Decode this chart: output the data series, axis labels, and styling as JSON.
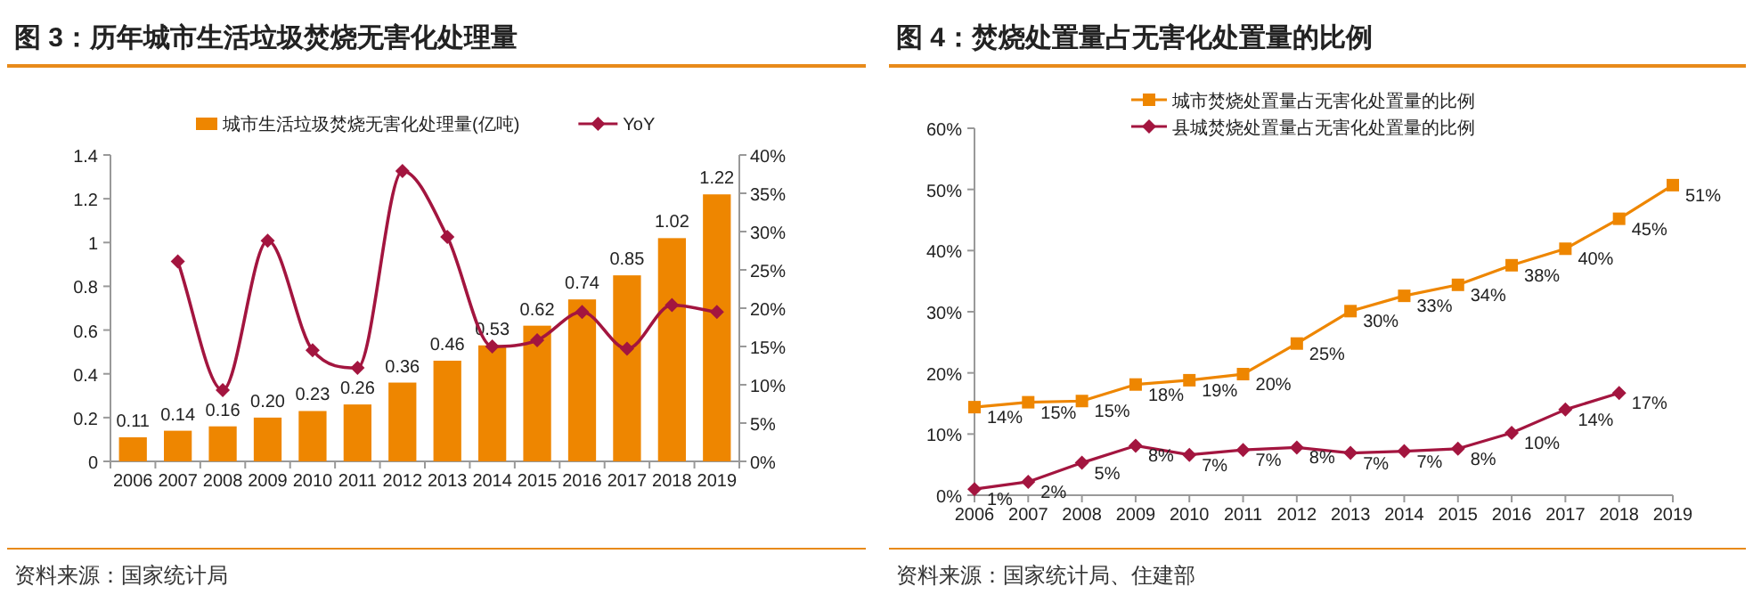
{
  "chart_data": [
    {
      "type": "bar",
      "title": "图 3：历年城市生活垃圾焚烧无害化处理量",
      "categories": [
        "2006",
        "2007",
        "2008",
        "2009",
        "2010",
        "2011",
        "2012",
        "2013",
        "2014",
        "2015",
        "2016",
        "2017",
        "2018",
        "2019"
      ],
      "series": [
        {
          "name": "城市生活垃圾焚烧无害化处理量(亿吨)",
          "type": "bar",
          "color": "#ee8600",
          "values": [
            0.11,
            0.14,
            0.16,
            0.2,
            0.23,
            0.26,
            0.36,
            0.46,
            0.53,
            0.62,
            0.74,
            0.85,
            1.02,
            1.22
          ],
          "value_labels": [
            "0.11",
            "0.14",
            "0.16",
            "0.20",
            "0.23",
            "0.26",
            "0.36",
            "0.46",
            "0.53",
            "0.62",
            "0.74",
            "0.85",
            "1.02",
            "1.22"
          ]
        },
        {
          "name": "YoY",
          "type": "line",
          "axis": "y2",
          "color": "#a3153f",
          "marker": "diamond",
          "values": [
            null,
            26.1,
            9.3,
            28.8,
            14.5,
            12.2,
            37.9,
            29.3,
            15.0,
            15.8,
            19.5,
            14.7,
            20.4,
            19.5
          ]
        }
      ],
      "ylim": [
        0,
        1.4
      ],
      "yticks": [
        0,
        0.2,
        0.4,
        0.6,
        0.8,
        1,
        1.2,
        1.4
      ],
      "y2lim": [
        0,
        40
      ],
      "y2ticks": [
        {
          "value": 0,
          "label": "0%"
        },
        {
          "value": 5,
          "label": "5%"
        },
        {
          "value": 10,
          "label": "10%"
        },
        {
          "value": 15,
          "label": "15%"
        },
        {
          "value": 20,
          "label": "20%"
        },
        {
          "value": 25,
          "label": "25%"
        },
        {
          "value": 30,
          "label": "30%"
        },
        {
          "value": 35,
          "label": "35%"
        },
        {
          "value": 40,
          "label": "40%"
        }
      ],
      "legend": "top",
      "annotations": [
        "资料来源：国家统计局"
      ]
    },
    {
      "type": "line",
      "title": "图 4：焚烧处置量占无害化处置量的比例",
      "categories": [
        "2006",
        "2007",
        "2008",
        "2009",
        "2010",
        "2011",
        "2012",
        "2013",
        "2014",
        "2015",
        "2016",
        "2017",
        "2018",
        "2019"
      ],
      "series": [
        {
          "name": "城市焚烧处置量占无害化处置量的比例",
          "color": "#ee8600",
          "marker": "square",
          "values": [
            14.4,
            15.2,
            15.4,
            18.1,
            18.8,
            19.8,
            24.8,
            30.1,
            32.6,
            34.4,
            37.6,
            40.3,
            45.2,
            50.7
          ],
          "value_labels": [
            "14%",
            "15%",
            "15%",
            "18%",
            "19%",
            "20%",
            "25%",
            "30%",
            "33%",
            "34%",
            "38%",
            "40%",
            "45%",
            "51%"
          ]
        },
        {
          "name": "县城焚烧处置量占无害化处置量的比例",
          "color": "#a3153f",
          "marker": "diamond",
          "values": [
            1.0,
            2.2,
            5.3,
            8.1,
            6.6,
            7.4,
            7.8,
            6.9,
            7.2,
            7.6,
            10.2,
            14.0,
            16.7,
            null
          ],
          "value_labels": [
            "1%",
            "2%",
            "5%",
            "8%",
            "7%",
            "7%",
            "8%",
            "7%",
            "7%",
            "8%",
            "10%",
            "14%",
            "17%",
            null
          ]
        }
      ],
      "ylim": [
        0,
        60
      ],
      "yticks": [
        {
          "value": 0,
          "label": "0%"
        },
        {
          "value": 10,
          "label": "10%"
        },
        {
          "value": 20,
          "label": "20%"
        },
        {
          "value": 30,
          "label": "30%"
        },
        {
          "value": 40,
          "label": "40%"
        },
        {
          "value": 50,
          "label": "50%"
        },
        {
          "value": 60,
          "label": "60%"
        }
      ],
      "legend": "top",
      "annotations": [
        "资料来源：国家统计局、住建部"
      ]
    }
  ]
}
